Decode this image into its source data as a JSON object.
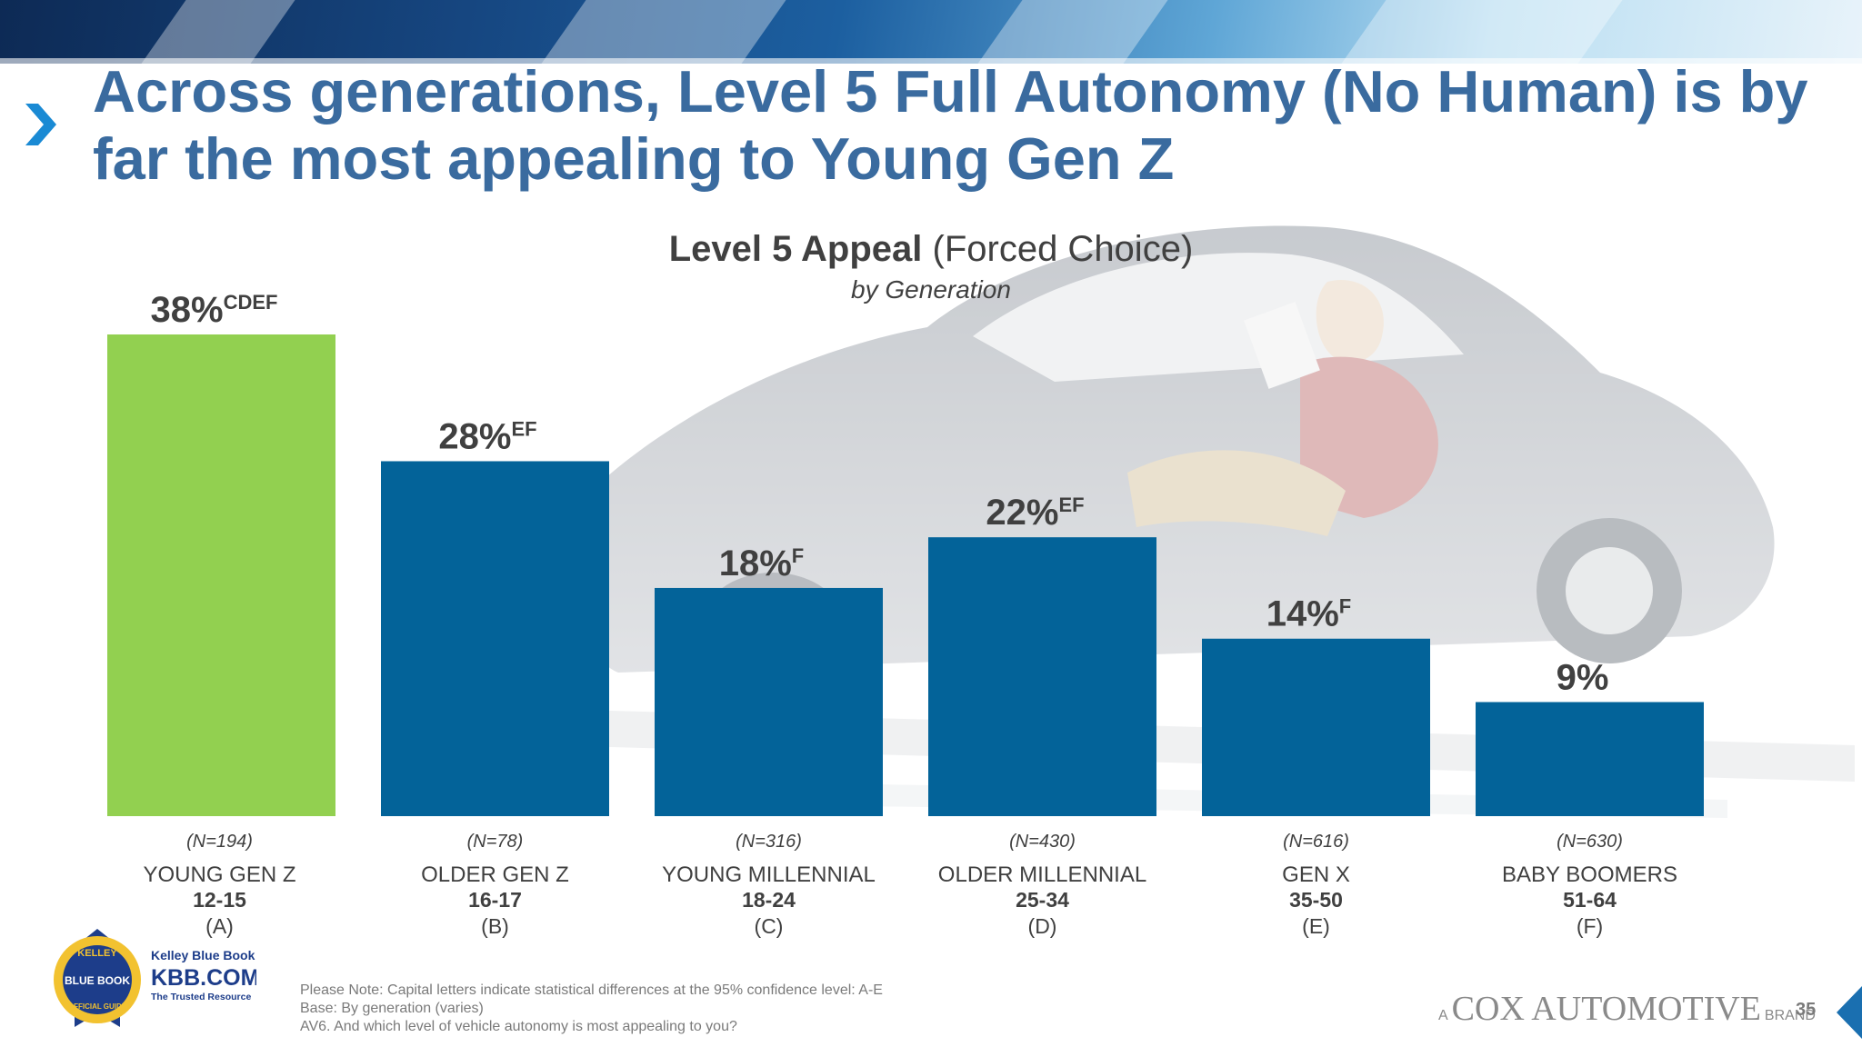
{
  "title": "Across generations, Level 5 Full Autonomy (No Human) is by far the most appealing to Young Gen Z",
  "chart_heading": {
    "bold": "Level 5 Appeal",
    "normal": "(Forced Choice)",
    "subtitle": "by Generation"
  },
  "colors": {
    "highlight_bar": "#92d050",
    "bar": "#036399",
    "title": "#3a6b9f",
    "label": "#404040"
  },
  "chart_data": {
    "type": "bar",
    "title": "Level 5 Appeal (Forced Choice)",
    "subtitle": "by Generation",
    "ylim": [
      0,
      40
    ],
    "grid": false,
    "categories": [
      "YOUNG GEN Z",
      "OLDER GEN Z",
      "YOUNG MILLENNIAL",
      "OLDER MILLENNIAL",
      "GEN X",
      "BABY BOOMERS"
    ],
    "ages": [
      "12-15",
      "16-17",
      "18-24",
      "25-34",
      "35-50",
      "51-64"
    ],
    "letters": [
      "(A)",
      "(B)",
      "(C)",
      "(D)",
      "(E)",
      "(F)"
    ],
    "sample_sizes": [
      "(N=194)",
      "(N=78)",
      "(N=316)",
      "(N=430)",
      "(N=616)",
      "(N=630)"
    ],
    "values": [
      38,
      28,
      18,
      22,
      14,
      9
    ],
    "value_labels": [
      "38%",
      "28%",
      "18%",
      "22%",
      "14%",
      "9%"
    ],
    "significance": [
      "CDEF",
      "EF",
      "F",
      "EF",
      "F",
      ""
    ],
    "highlight_index": 0
  },
  "notes": [
    "Please Note: Capital letters indicate statistical differences at the 95% confidence level: A-E",
    "Base: By generation  (varies)",
    "AV6. And which level of vehicle autonomy is most appealing to you?"
  ],
  "kbb_logo": {
    "line1": "Kelley Blue Book",
    "line2": "KBB.COM",
    "line3": "The Trusted Resource",
    "badge_top": "KELLEY",
    "badge_mid": "BLUE BOOK",
    "badge_bottom": "OFFICIAL GUIDE"
  },
  "footer": {
    "prefix": "A",
    "brand_name": "COX AUTOMOTIVE",
    "suffix": "BRAND",
    "page_number": "35"
  }
}
